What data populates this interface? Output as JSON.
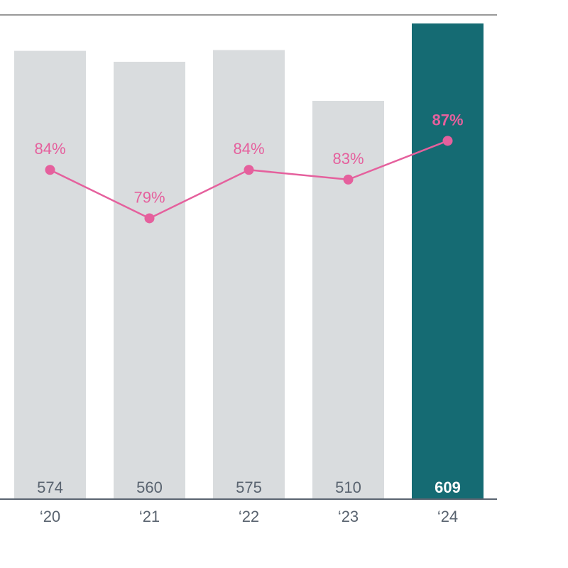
{
  "chart_data": {
    "type": "bar",
    "categories": [
      "‘20",
      "‘21",
      "‘22",
      "‘23",
      "‘24"
    ],
    "values": [
      574,
      560,
      575,
      510,
      609
    ],
    "bar_labels": [
      "574",
      "560",
      "575",
      "510",
      "609"
    ],
    "highlight_index": 4,
    "line_series": {
      "values": [
        84,
        79,
        84,
        83,
        87
      ],
      "labels": [
        "84%",
        "79%",
        "84%",
        "83%",
        "87%"
      ]
    },
    "title": "",
    "xlabel": "",
    "ylabel": "",
    "ylim": [
      0,
      620
    ],
    "line_ylim": [
      50,
      100
    ],
    "grid": false,
    "colors": {
      "bar": "#d9dcde",
      "bar_highlight": "#156b73",
      "bar_label": "#5a6470",
      "bar_label_highlight": "#ffffff",
      "line": "#e5609d",
      "axis": "#5a6470",
      "top_rule": "#333333"
    }
  }
}
